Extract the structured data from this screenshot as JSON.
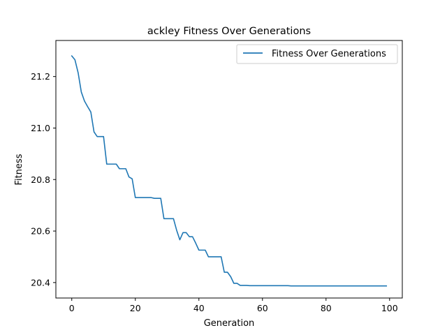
{
  "chart_data": {
    "type": "line",
    "title": "ackley Fitness Over Generations",
    "xlabel": "Generation",
    "ylabel": "Fitness",
    "xlim": [
      -5,
      104
    ],
    "ylim": [
      20.34,
      21.34
    ],
    "xticks": [
      0,
      20,
      40,
      60,
      80,
      100
    ],
    "xtick_labels": [
      "0",
      "20",
      "40",
      "60",
      "80",
      "100"
    ],
    "yticks": [
      20.4,
      20.6,
      20.8,
      21.0,
      21.2
    ],
    "ytick_labels": [
      "20.4",
      "20.6",
      "20.8",
      "21.0",
      "21.2"
    ],
    "grid": false,
    "legend": {
      "position": "upper right"
    },
    "series": [
      {
        "name": "Fitness Over Generations",
        "color": "#1f77b4",
        "x": [
          0,
          1,
          2,
          3,
          4,
          5,
          6,
          7,
          8,
          9,
          10,
          11,
          12,
          13,
          14,
          15,
          16,
          17,
          18,
          19,
          20,
          21,
          22,
          23,
          24,
          25,
          26,
          27,
          28,
          29,
          30,
          31,
          32,
          33,
          34,
          35,
          36,
          37,
          38,
          39,
          40,
          41,
          42,
          43,
          44,
          45,
          46,
          47,
          48,
          49,
          50,
          51,
          52,
          53,
          54,
          55,
          56,
          57,
          58,
          59,
          60,
          61,
          62,
          63,
          64,
          65,
          66,
          67,
          68,
          69,
          70,
          71,
          72,
          73,
          74,
          75,
          76,
          77,
          78,
          79,
          80,
          81,
          82,
          83,
          84,
          85,
          86,
          87,
          88,
          89,
          90,
          91,
          92,
          93,
          94,
          95,
          96,
          97,
          98,
          99
        ],
        "y": [
          21.28,
          21.265,
          21.215,
          21.14,
          21.105,
          21.083,
          21.062,
          20.985,
          20.967,
          20.967,
          20.967,
          20.86,
          20.86,
          20.86,
          20.86,
          20.842,
          20.842,
          20.842,
          20.81,
          20.803,
          20.73,
          20.73,
          20.73,
          20.73,
          20.73,
          20.73,
          20.727,
          20.727,
          20.727,
          20.648,
          20.648,
          20.648,
          20.648,
          20.603,
          20.566,
          20.594,
          20.594,
          20.578,
          20.578,
          20.553,
          20.526,
          20.526,
          20.526,
          20.5,
          20.5,
          20.5,
          20.5,
          20.5,
          20.44,
          20.44,
          20.423,
          20.397,
          20.397,
          20.389,
          20.389,
          20.389,
          20.388,
          20.388,
          20.388,
          20.388,
          20.388,
          20.388,
          20.388,
          20.388,
          20.388,
          20.388,
          20.388,
          20.388,
          20.388,
          20.387,
          20.387,
          20.387,
          20.387,
          20.387,
          20.387,
          20.387,
          20.387,
          20.387,
          20.387,
          20.387,
          20.387,
          20.387,
          20.387,
          20.387,
          20.387,
          20.387,
          20.387,
          20.387,
          20.387,
          20.387,
          20.387,
          20.387,
          20.387,
          20.387,
          20.387,
          20.387,
          20.387,
          20.387,
          20.387,
          20.387
        ]
      }
    ]
  }
}
